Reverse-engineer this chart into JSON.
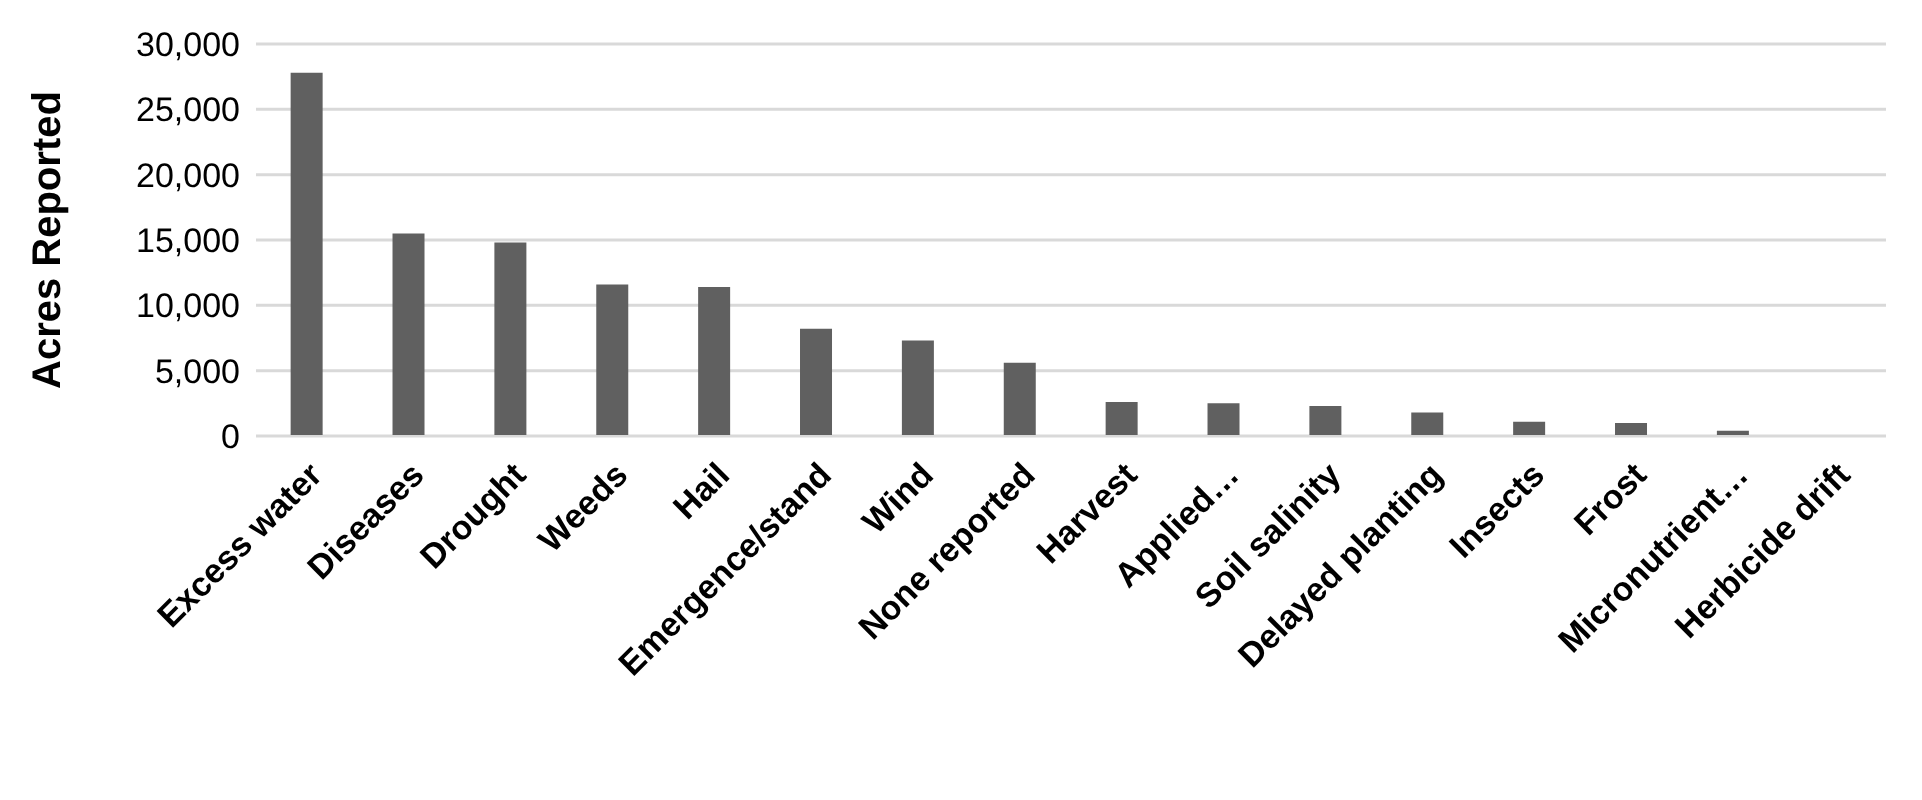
{
  "chart_data": {
    "type": "bar",
    "ylabel": "Acres Reported",
    "categories": [
      "Excess water",
      "Diseases",
      "Drought",
      "Weeds",
      "Hail",
      "Emergence/stand",
      "Wind",
      "None reported",
      "Harvest",
      "Applied…",
      "Soil salinity",
      "Delayed planting",
      "Insects",
      "Frost",
      "Micronutrient…",
      "Herbicide drift"
    ],
    "values": [
      27800,
      15500,
      14800,
      11600,
      11400,
      8200,
      7300,
      5600,
      2600,
      2500,
      2300,
      1800,
      1100,
      1000,
      400,
      0
    ],
    "color": "#606060",
    "ylim": [
      0,
      30000
    ],
    "yticks": [
      0,
      {
        "value": 5000,
        "label": "5,000"
      },
      {
        "value": 10000,
        "label": "10,000"
      },
      {
        "value": 15000,
        "label": "15,000"
      },
      {
        "value": 20000,
        "label": "20,000"
      },
      {
        "value": 25000,
        "label": "25,000"
      },
      {
        "value": 30000,
        "label": "30,000"
      }
    ],
    "grid": "y"
  }
}
